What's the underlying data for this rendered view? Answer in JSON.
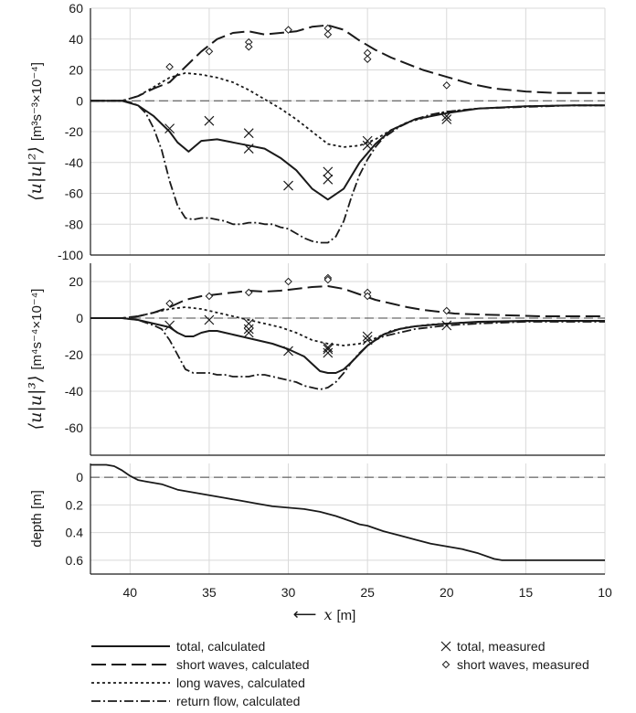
{
  "chart_data": [
    {
      "type": "line",
      "panel": "top",
      "ylabel_main": "⟨u|u|²⟩",
      "ylabel_units": "[m³s⁻³×10⁻⁴]",
      "ylim": [
        -100,
        60
      ],
      "yticks": [
        60,
        40,
        20,
        0,
        -20,
        -40,
        -60,
        -80,
        -100
      ],
      "xlim": [
        42.5,
        10
      ],
      "grid": true,
      "reference_line_y": 0,
      "series": [
        {
          "name": "total, calculated",
          "x": [
            42.5,
            40.5,
            39.5,
            38.5,
            37.5,
            37,
            36.3,
            35.5,
            34.5,
            33.5,
            32.5,
            31.5,
            30.5,
            29.5,
            28.5,
            27.5,
            26.5,
            25.5,
            24.5,
            23.5,
            22,
            20,
            18,
            15,
            12,
            10
          ],
          "y": [
            0,
            0,
            -3,
            -10,
            -20,
            -27,
            -33,
            -26,
            -25,
            -27,
            -29,
            -31,
            -37,
            -45,
            -57,
            -64,
            -57,
            -40,
            -28,
            -19,
            -12,
            -8,
            -5,
            -3.5,
            -3,
            -3
          ]
        },
        {
          "name": "short waves, calculated",
          "x": [
            42.5,
            40.5,
            39.5,
            38.5,
            37.5,
            36.5,
            35.5,
            34.5,
            33.5,
            32.5,
            31.5,
            30.5,
            29.5,
            28.5,
            27.5,
            26.5,
            25.5,
            24.5,
            23.5,
            22.5,
            21.5,
            20.5,
            19.5,
            18.5,
            17,
            15,
            13,
            10
          ],
          "y": [
            0,
            0,
            3,
            8,
            12,
            22,
            32,
            40,
            44,
            45,
            43,
            44,
            45,
            48,
            49,
            46,
            39,
            33,
            28,
            24,
            20,
            17,
            14,
            11,
            8,
            6,
            5,
            5
          ]
        },
        {
          "name": "long waves, calculated",
          "x": [
            42.5,
            40.5,
            39.5,
            38.5,
            37.5,
            36.5,
            35.5,
            34.5,
            33.5,
            32.5,
            31.5,
            30.5,
            29.5,
            28.5,
            27.5,
            26.5,
            25.5,
            24.5,
            23.5,
            22.5,
            21,
            20,
            18,
            15,
            12,
            10
          ],
          "y": [
            0,
            0,
            3,
            9,
            15,
            18,
            17,
            15,
            12,
            7,
            1,
            -5,
            -12,
            -20,
            -28,
            -30,
            -29,
            -25,
            -19,
            -14,
            -10,
            -7,
            -5,
            -3.5,
            -3,
            -3
          ]
        },
        {
          "name": "return flow, calculated",
          "x": [
            42.5,
            40.5,
            40,
            39.5,
            39,
            38.5,
            38,
            37.5,
            37,
            36.5,
            36,
            35.5,
            35,
            34.5,
            34,
            33.5,
            33,
            32.5,
            32,
            31.5,
            31,
            30.5,
            30,
            29.5,
            29,
            28.5,
            28,
            27.5,
            27,
            26.5,
            26,
            25.5,
            25,
            24.5,
            24,
            23,
            22,
            21,
            20,
            18,
            15,
            12,
            10
          ],
          "y": [
            0,
            0,
            -1,
            -3,
            -8,
            -18,
            -32,
            -52,
            -68,
            -76,
            -77,
            -76,
            -76,
            -77,
            -78,
            -80,
            -80,
            -79,
            -79,
            -80,
            -80,
            -82,
            -83,
            -86,
            -89,
            -91,
            -92,
            -92,
            -88,
            -78,
            -62,
            -48,
            -38,
            -30,
            -24,
            -17,
            -12,
            -9,
            -7,
            -5,
            -4,
            -3,
            -3
          ]
        }
      ],
      "measured": [
        {
          "name": "total, measured",
          "marker": "x",
          "x": [
            37.5,
            35,
            32.5,
            32.5,
            30,
            27.5,
            27.5,
            25,
            25,
            20,
            20
          ],
          "y": [
            -18,
            -13,
            -21,
            -31,
            -55,
            -46,
            -51,
            -26,
            -29,
            -10,
            -12
          ]
        },
        {
          "name": "short waves, measured",
          "marker": "diamond",
          "x": [
            37.5,
            35,
            32.5,
            32.5,
            30,
            27.5,
            27.5,
            25,
            25,
            20
          ],
          "y": [
            22,
            32,
            38,
            35,
            46,
            47,
            43,
            31,
            27,
            10
          ]
        }
      ]
    },
    {
      "type": "line",
      "panel": "middle",
      "ylabel_main": "⟨u|u|³⟩",
      "ylabel_units": "[m⁴s⁻⁴×10⁻⁴]",
      "ylim": [
        -75,
        30
      ],
      "yticks": [
        20,
        0,
        -20,
        -40,
        -60
      ],
      "xlim": [
        42.5,
        10
      ],
      "grid": true,
      "reference_line_y": 0,
      "series": [
        {
          "name": "total, calculated",
          "x": [
            42.5,
            40.5,
            39.5,
            38.5,
            37.5,
            37,
            36.5,
            36,
            35.5,
            35,
            34.5,
            34,
            33,
            32,
            31,
            30,
            29,
            28.5,
            28,
            27.5,
            27,
            26.5,
            26,
            25,
            24,
            23,
            22,
            20,
            18,
            15,
            12,
            10
          ],
          "y": [
            0,
            0,
            -1,
            -3,
            -5,
            -8,
            -10,
            -10,
            -8,
            -7,
            -7,
            -8,
            -10,
            -12,
            -14,
            -17,
            -21,
            -25,
            -29,
            -30,
            -30,
            -28,
            -24,
            -15,
            -9,
            -6,
            -4.5,
            -3,
            -2,
            -1.5,
            -1.5,
            -1.5
          ]
        },
        {
          "name": "short waves, calculated",
          "x": [
            42.5,
            40.5,
            39.5,
            38.5,
            37.5,
            36.5,
            35.5,
            34.5,
            33.5,
            32.5,
            31.5,
            30.5,
            29.5,
            28.5,
            27.5,
            26.5,
            25.5,
            24.5,
            23.5,
            22.5,
            21.5,
            20.5,
            19.5,
            18,
            16,
            14,
            12,
            10
          ],
          "y": [
            0,
            0,
            1,
            3,
            6,
            10,
            12,
            13,
            14,
            15,
            14.5,
            15,
            16,
            17,
            17.5,
            16,
            13,
            10,
            8,
            6,
            4.5,
            3.5,
            2.5,
            2,
            1.5,
            1,
            1,
            1
          ]
        },
        {
          "name": "long waves, calculated",
          "x": [
            42.5,
            40.5,
            39.5,
            38.5,
            37.5,
            36.5,
            35.5,
            34.5,
            33.5,
            32.5,
            31.5,
            30.5,
            29.5,
            28.5,
            27.5,
            26.5,
            25.5,
            24.5,
            23.5,
            22.5,
            21,
            19,
            17,
            14,
            12,
            10
          ],
          "y": [
            0,
            0,
            1,
            3,
            5,
            6,
            5,
            3,
            1,
            -1,
            -3,
            -5,
            -8,
            -12,
            -14,
            -15,
            -14,
            -11,
            -7,
            -5,
            -3.5,
            -2.5,
            -2,
            -1.5,
            -1.5,
            -1.5
          ]
        },
        {
          "name": "return flow, calculated",
          "x": [
            42.5,
            40.5,
            39.5,
            38.5,
            38,
            37.5,
            37,
            36.5,
            36,
            35.5,
            35,
            34.5,
            34,
            33.5,
            33,
            32.5,
            32,
            31.5,
            31,
            30.5,
            30,
            29.5,
            29,
            28.5,
            28,
            27.5,
            27,
            26.5,
            26,
            25.5,
            25,
            24.5,
            24,
            23,
            22,
            20,
            18,
            15,
            12,
            10
          ],
          "y": [
            0,
            0,
            -1,
            -4,
            -6,
            -12,
            -20,
            -28,
            -30,
            -30,
            -30,
            -31,
            -31,
            -32,
            -32,
            -32,
            -31,
            -31,
            -32,
            -33,
            -34,
            -35,
            -37,
            -38,
            -39,
            -38,
            -35,
            -30,
            -24,
            -19,
            -15,
            -12,
            -10,
            -8,
            -6,
            -4,
            -3,
            -2,
            -2,
            -2
          ]
        }
      ],
      "measured": [
        {
          "name": "total, measured",
          "marker": "x",
          "x": [
            37.5,
            35,
            32.5,
            32.5,
            32.5,
            30,
            27.5,
            27.5,
            27.5,
            25,
            25,
            20
          ],
          "y": [
            -4,
            -1,
            -3,
            -6,
            -8,
            -18,
            -16,
            -17,
            -19,
            -10,
            -12,
            -4
          ]
        },
        {
          "name": "short waves, measured",
          "marker": "diamond",
          "x": [
            37.5,
            35,
            32.5,
            30,
            27.5,
            27.5,
            25,
            25,
            20
          ],
          "y": [
            8,
            12,
            14,
            20,
            22,
            21,
            14,
            12,
            4
          ]
        }
      ]
    },
    {
      "type": "line",
      "panel": "bottom",
      "ylabel": "depth [m]",
      "ylim": [
        0.7,
        -0.1
      ],
      "yticks": [
        0,
        0.2,
        0.4,
        0.6
      ],
      "ytick_labels": [
        "0",
        "0.2",
        "0.4",
        "0.6"
      ],
      "xlim": [
        42.5,
        10
      ],
      "xticks": [
        40,
        35,
        30,
        25,
        20,
        15,
        10
      ],
      "xlabel_arrow": "⟵",
      "xlabel_var": "x",
      "xlabel_unit": "[m]",
      "grid": true,
      "reference_line_y": 0,
      "series": [
        {
          "name": "depth",
          "x": [
            42.5,
            41.5,
            41,
            40.5,
            40,
            39.5,
            39,
            38.5,
            38,
            37.5,
            37,
            36,
            35,
            34,
            33,
            32,
            31,
            30,
            29,
            28,
            27,
            26.5,
            26,
            25.5,
            25,
            24.5,
            24,
            23,
            22,
            21,
            20,
            19,
            18,
            17,
            16.5,
            16,
            14,
            12,
            10
          ],
          "y": [
            -0.09,
            -0.09,
            -0.08,
            -0.05,
            -0.01,
            0.02,
            0.03,
            0.04,
            0.05,
            0.07,
            0.09,
            0.11,
            0.13,
            0.15,
            0.17,
            0.19,
            0.21,
            0.22,
            0.23,
            0.25,
            0.28,
            0.3,
            0.32,
            0.34,
            0.35,
            0.37,
            0.39,
            0.42,
            0.45,
            0.48,
            0.5,
            0.52,
            0.55,
            0.59,
            0.6,
            0.6,
            0.6,
            0.6,
            0.6
          ]
        }
      ]
    }
  ],
  "legend": {
    "items": [
      {
        "label": "total, calculated",
        "style": "solid"
      },
      {
        "label": "short waves, calculated",
        "style": "dashed"
      },
      {
        "label": "long waves, calculated",
        "style": "dotted"
      },
      {
        "label": "return flow, calculated",
        "style": "dashdot"
      }
    ],
    "markers": [
      {
        "label": "total, measured",
        "marker": "x"
      },
      {
        "label": "short waves, measured",
        "marker": "diamond"
      }
    ]
  },
  "colors": {
    "line": "#1a1a1a",
    "grid": "#d9d9d9",
    "axis": "#1a1a1a"
  }
}
